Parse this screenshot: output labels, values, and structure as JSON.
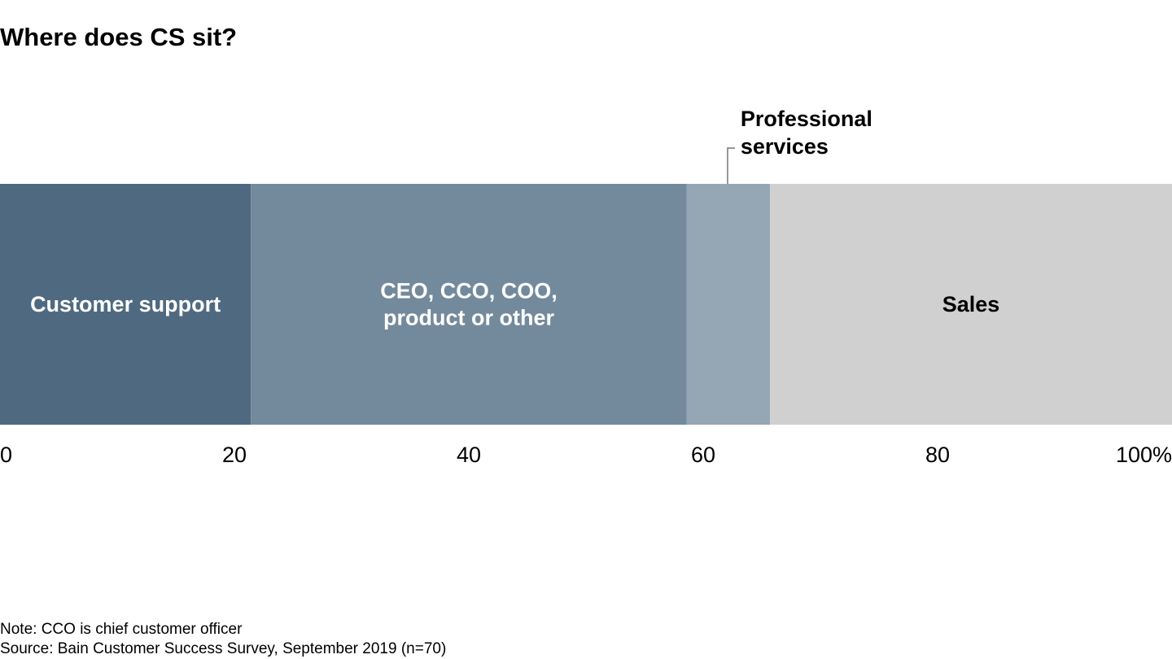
{
  "title": "Where does CS sit?",
  "chart_data": {
    "type": "bar",
    "orientation": "horizontal-stacked",
    "xlim": [
      0,
      100
    ],
    "ticks": [
      {
        "value": 0,
        "label": "0"
      },
      {
        "value": 20,
        "label": "20"
      },
      {
        "value": 40,
        "label": "40"
      },
      {
        "value": 60,
        "label": "60"
      },
      {
        "value": 80,
        "label": "80"
      },
      {
        "value": 100,
        "label": "100%"
      }
    ],
    "segments": [
      {
        "name": "Customer support",
        "lines": [
          "Customer support"
        ],
        "value": 21.4,
        "color": "#4f6a80",
        "label_color": "#ffffff",
        "label_position": "inside"
      },
      {
        "name": "CEO, CCO, COO, product or other",
        "lines": [
          "CEO, CCO, COO,",
          "product or other"
        ],
        "value": 37.2,
        "color": "#738a9c",
        "label_color": "#ffffff",
        "label_position": "inside"
      },
      {
        "name": "Professional services",
        "lines": [
          "Professional",
          "services"
        ],
        "value": 7.1,
        "color": "#95a7b4",
        "label_color": "#000000",
        "label_position": "above"
      },
      {
        "name": "Sales",
        "lines": [
          "Sales"
        ],
        "value": 34.3,
        "color": "#d0d0d0",
        "label_color": "#000000",
        "label_position": "inside"
      }
    ],
    "grid": false,
    "legend": "none"
  },
  "notes": {
    "note": "Note: CCO is chief customer officer",
    "source": "Source: Bain Customer Success Survey, September 2019 (n=70)"
  }
}
